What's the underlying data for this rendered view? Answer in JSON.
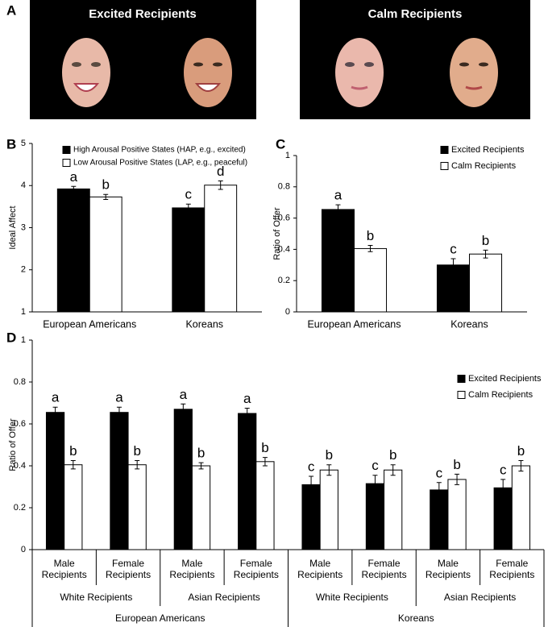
{
  "panel_a": {
    "label": "A",
    "panels": [
      {
        "title": "Excited Recipients"
      },
      {
        "title": "Calm Recipients"
      }
    ]
  },
  "chart_data": [
    {
      "type": "bar",
      "label": "B",
      "ylabel": "Ideal Affect",
      "categories": [
        "European Americans",
        "Koreans"
      ],
      "series": [
        {
          "name": "High Arousal Positive States (HAP, e.g., excited)",
          "color": "#000000",
          "values": [
            3.92,
            3.47
          ],
          "errors": [
            0.06,
            0.09
          ],
          "letters": [
            "a",
            "c"
          ]
        },
        {
          "name": "Low Arousal Positive States (LAP, e.g., peaceful)",
          "color": "#ffffff",
          "values": [
            3.73,
            4.01
          ],
          "errors": [
            0.06,
            0.1
          ],
          "letters": [
            "b",
            "d"
          ]
        }
      ],
      "ylim": [
        1,
        5
      ],
      "yticks": [
        1,
        2,
        3,
        4,
        5
      ],
      "legend": "top-left"
    },
    {
      "type": "bar",
      "label": "C",
      "ylabel": "Ratio of Offer",
      "categories": [
        "European Americans",
        "Koreans"
      ],
      "series": [
        {
          "name": "Excited Recipients",
          "color": "#000000",
          "values": [
            0.655,
            0.3
          ],
          "errors": [
            0.03,
            0.04
          ],
          "letters": [
            "a",
            "c"
          ]
        },
        {
          "name": "Calm Recipients",
          "color": "#ffffff",
          "values": [
            0.405,
            0.37
          ],
          "errors": [
            0.02,
            0.025
          ],
          "letters": [
            "b",
            "b"
          ]
        }
      ],
      "ylim": [
        0,
        1
      ],
      "yticks": [
        0,
        0.2,
        0.4,
        0.6,
        0.8,
        1
      ],
      "legend": "top-right"
    },
    {
      "type": "bar",
      "label": "D",
      "ylabel": "Ratio of Offer",
      "categories": [
        "Male Recipients",
        "Female Recipients",
        "Male Recipients",
        "Female Recipients",
        "Male Recipients",
        "Female Recipients",
        "Male Recipients",
        "Female Recipients"
      ],
      "subgroups": [
        "White Recipients",
        "Asian Recipients",
        "White Recipients",
        "Asian Recipients"
      ],
      "groups": [
        "European Americans",
        "Koreans"
      ],
      "series": [
        {
          "name": "Excited Recipients",
          "color": "#000000",
          "values": [
            0.655,
            0.655,
            0.67,
            0.65,
            0.31,
            0.315,
            0.285,
            0.295
          ],
          "errors": [
            0.025,
            0.025,
            0.025,
            0.025,
            0.04,
            0.04,
            0.035,
            0.04
          ],
          "letters": [
            "a",
            "a",
            "a",
            "a",
            "c",
            "c",
            "c",
            "c"
          ]
        },
        {
          "name": "Calm Recipients",
          "color": "#ffffff",
          "values": [
            0.405,
            0.405,
            0.4,
            0.42,
            0.38,
            0.38,
            0.335,
            0.4
          ],
          "errors": [
            0.02,
            0.02,
            0.015,
            0.02,
            0.025,
            0.025,
            0.025,
            0.025
          ],
          "letters": [
            "b",
            "b",
            "b",
            "b",
            "b",
            "b",
            "b",
            "b"
          ]
        }
      ],
      "ylim": [
        0,
        1
      ],
      "yticks": [
        0,
        0.2,
        0.4,
        0.6,
        0.8,
        1
      ],
      "legend": "top-right"
    }
  ]
}
